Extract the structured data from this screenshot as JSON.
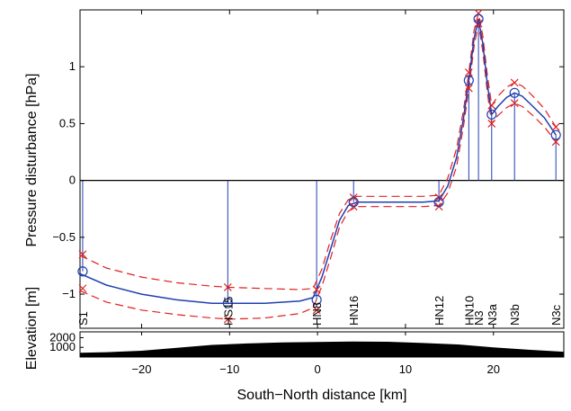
{
  "chart_data": [
    {
      "type": "line",
      "ylabel": "Pressure disturbance [hPa]",
      "xlim": [
        -27,
        28
      ],
      "ylim": [
        -1.3,
        1.5
      ],
      "xticks": [
        -20,
        -10,
        0,
        10,
        20
      ],
      "yticks": [
        -1,
        -0.5,
        0,
        0.5,
        1
      ],
      "ytick_labels": [
        "−1",
        "−0.5",
        "0",
        "0.5",
        "1"
      ],
      "zero_line": true,
      "grid": false,
      "stations": [
        {
          "name": "S1",
          "x": -26.7,
          "value": -0.8,
          "upper": -0.65,
          "lower": -0.95
        },
        {
          "name": "HS15",
          "x": -10.2,
          "value": -1.08,
          "upper": -0.94,
          "lower": -1.22
        },
        {
          "name": "HN8",
          "x": -0.1,
          "value": -1.05,
          "upper": -0.96,
          "lower": -1.14
        },
        {
          "name": "HN16",
          "x": 4.1,
          "value": -0.19,
          "upper": -0.15,
          "lower": -0.23
        },
        {
          "name": "HN12",
          "x": 13.8,
          "value": -0.19,
          "upper": -0.15,
          "lower": -0.23
        },
        {
          "name": "HN10",
          "x": 17.2,
          "value": 0.88,
          "upper": 0.95,
          "lower": 0.81
        },
        {
          "name": "N3",
          "x": 18.3,
          "value": 1.42,
          "upper": 1.47,
          "lower": 1.38
        },
        {
          "name": "N3a",
          "x": 19.8,
          "value": 0.58,
          "upper": 0.66,
          "lower": 0.5
        },
        {
          "name": "N3b",
          "x": 22.4,
          "value": 0.77,
          "upper": 0.86,
          "lower": 0.68
        },
        {
          "name": "N3c",
          "x": 27.1,
          "value": 0.4,
          "upper": 0.47,
          "lower": 0.34
        }
      ],
      "fit_curve": {
        "x": [
          -27,
          -24,
          -20,
          -16,
          -12,
          -10,
          -6,
          -2,
          -0.5,
          0.5,
          1.5,
          2.5,
          3.5,
          4.5,
          6,
          9,
          12,
          13.8,
          14.8,
          15.8,
          16.6,
          17.2,
          17.8,
          18.3,
          18.8,
          19.3,
          19.8,
          20.5,
          21.5,
          22.4,
          23.3,
          24.5,
          25.8,
          27.1
        ],
        "y": [
          -0.82,
          -0.92,
          -1.0,
          -1.05,
          -1.08,
          -1.08,
          -1.08,
          -1.06,
          -1.03,
          -0.85,
          -0.6,
          -0.35,
          -0.22,
          -0.19,
          -0.19,
          -0.19,
          -0.19,
          -0.18,
          -0.05,
          0.2,
          0.55,
          0.88,
          1.25,
          1.42,
          1.2,
          0.85,
          0.58,
          0.65,
          0.73,
          0.77,
          0.74,
          0.65,
          0.55,
          0.4
        ]
      },
      "upper_curve": {
        "x": [
          -27,
          -24,
          -20,
          -16,
          -12,
          -10,
          -6,
          -2,
          -0.5,
          0.5,
          1.5,
          2.5,
          3.5,
          4.5,
          6,
          9,
          12,
          13.8,
          14.8,
          15.8,
          16.6,
          17.2,
          17.8,
          18.3,
          18.8,
          19.3,
          19.8,
          20.5,
          21.5,
          22.4,
          23.3,
          24.5,
          25.8,
          27.1
        ],
        "y": [
          -0.66,
          -0.77,
          -0.85,
          -0.9,
          -0.93,
          -0.94,
          -0.95,
          -0.96,
          -0.95,
          -0.78,
          -0.52,
          -0.29,
          -0.17,
          -0.14,
          -0.14,
          -0.14,
          -0.14,
          -0.13,
          0.02,
          0.28,
          0.62,
          0.95,
          1.32,
          1.47,
          1.27,
          0.93,
          0.66,
          0.74,
          0.82,
          0.86,
          0.83,
          0.74,
          0.63,
          0.47
        ]
      },
      "lower_curve": {
        "x": [
          -27,
          -24,
          -20,
          -16,
          -12,
          -10,
          -6,
          -2,
          -0.5,
          0.5,
          1.5,
          2.5,
          3.5,
          4.5,
          6,
          9,
          12,
          13.8,
          14.8,
          15.8,
          16.6,
          17.2,
          17.8,
          18.3,
          18.8,
          19.3,
          19.8,
          20.5,
          21.5,
          22.4,
          23.3,
          24.5,
          25.8,
          27.1
        ],
        "y": [
          -0.97,
          -1.07,
          -1.14,
          -1.18,
          -1.21,
          -1.22,
          -1.21,
          -1.17,
          -1.12,
          -0.93,
          -0.68,
          -0.41,
          -0.27,
          -0.23,
          -0.23,
          -0.23,
          -0.23,
          -0.22,
          -0.11,
          0.12,
          0.48,
          0.81,
          1.18,
          1.38,
          1.13,
          0.78,
          0.5,
          0.57,
          0.64,
          0.68,
          0.65,
          0.57,
          0.47,
          0.34
        ]
      },
      "colors": {
        "fit": "#1f3fb0",
        "band": "#e02020",
        "stem": "#1f3fb0",
        "cross": "#e02020"
      }
    },
    {
      "type": "area",
      "xlabel": "South−North distance [km]",
      "ylabel": "Elevation [m]",
      "xlim": [
        -27,
        28
      ],
      "ylim": [
        0,
        2600
      ],
      "xticks": [
        -20,
        -10,
        0,
        10,
        20
      ],
      "xtick_labels": [
        "−20",
        "−10",
        "0",
        "10",
        "20"
      ],
      "yticks": [
        1000,
        2000
      ],
      "x": [
        -27,
        -24,
        -20,
        -16,
        -12,
        -8,
        -4,
        0,
        4,
        8,
        12,
        16,
        18,
        20,
        24,
        28
      ],
      "y": [
        450,
        500,
        650,
        950,
        1250,
        1400,
        1500,
        1560,
        1600,
        1580,
        1450,
        1300,
        1150,
        1000,
        750,
        550
      ],
      "color": "#000000"
    }
  ]
}
